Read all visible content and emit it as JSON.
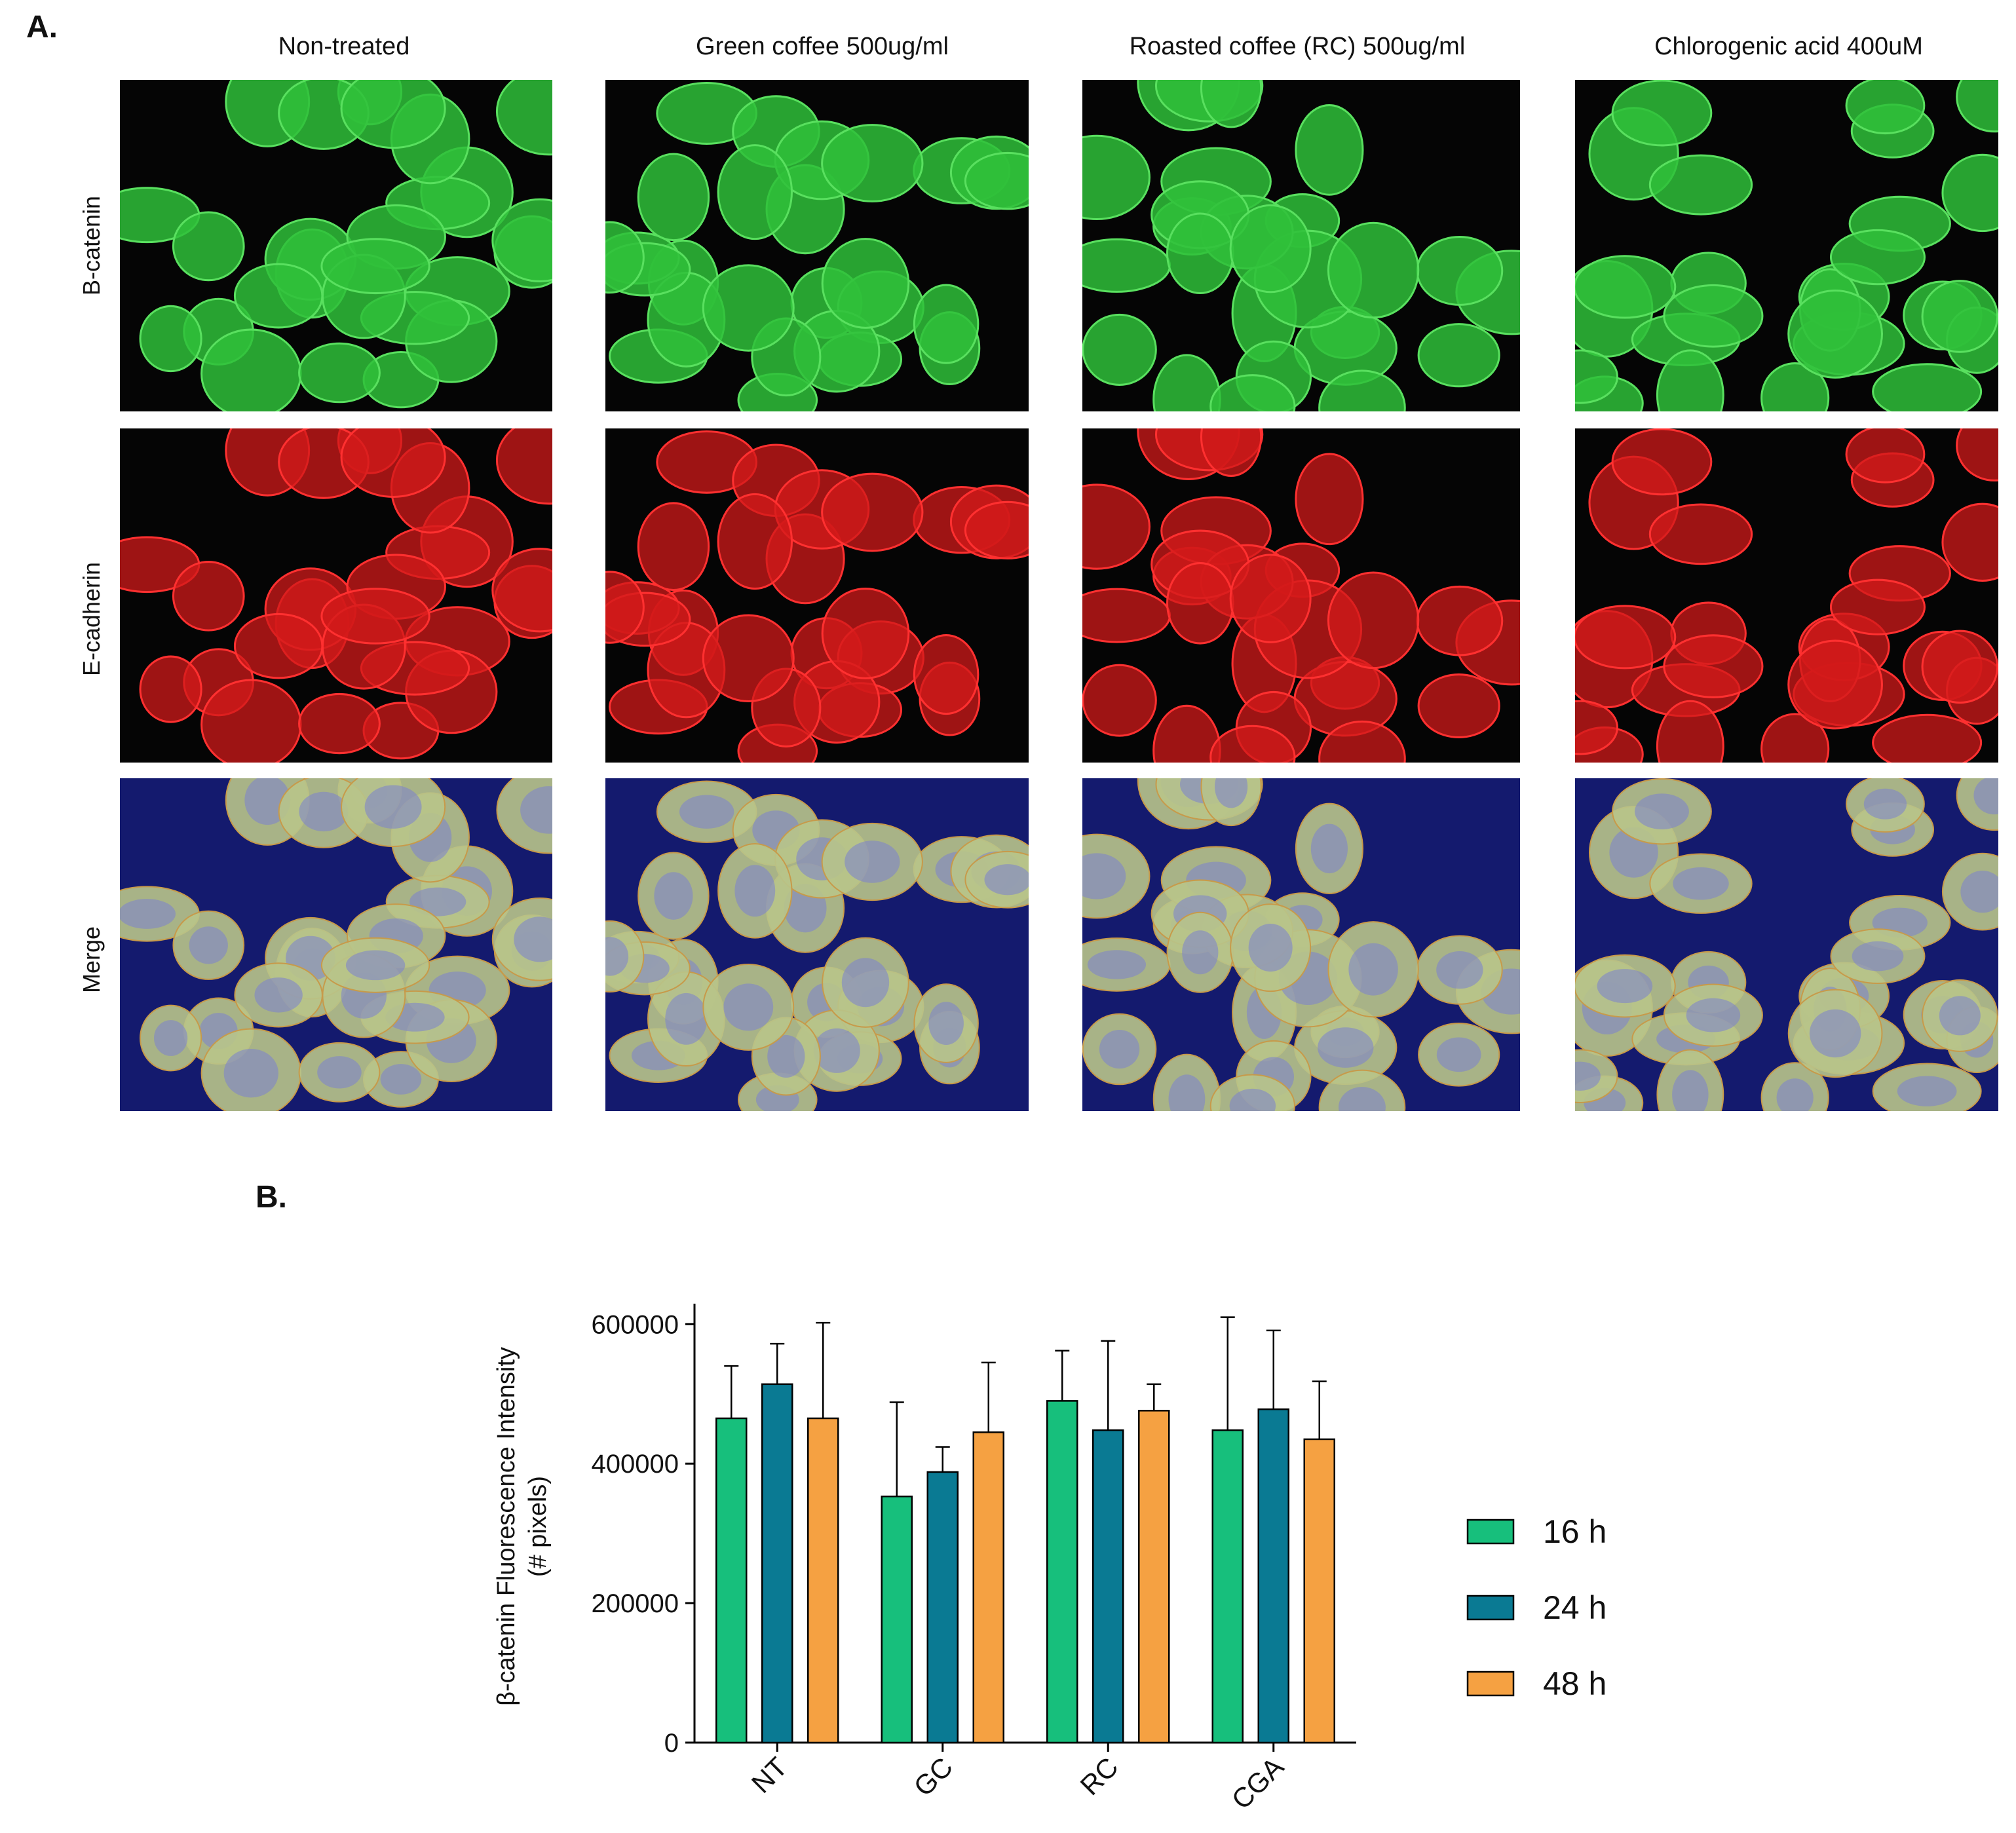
{
  "panel_a": {
    "letter": "A.",
    "columns": [
      "Non-treated",
      "Green coffee 500ug/ml",
      "Roasted coffee (RC) 500ug/ml",
      "Chlorogenic acid 400uM"
    ],
    "rows": [
      "B-catenin",
      "E-cadherin",
      "Merge"
    ],
    "channel_colors": {
      "b_catenin": "#2fbf3a",
      "e_cadherin": "#d11a1a",
      "merge_background": "#141a6e",
      "merge_cells": "#b8c48a",
      "merge_nuclei": "#7a7fd0"
    }
  },
  "panel_b": {
    "letter": "B."
  },
  "chart_data": {
    "type": "bar",
    "categories": [
      "NT",
      "GC",
      "RC",
      "CGA"
    ],
    "ylabel": "β-catenin Fluorescence Intensity\n(# pixels)",
    "ylabel_lines": [
      "β-catenin Fluorescence Intensity",
      "(# pixels)"
    ],
    "ylim": [
      0,
      620000
    ],
    "yticks": [
      0,
      200000,
      400000,
      600000
    ],
    "ytick_labels": [
      "0",
      "200000",
      "400000",
      "600000"
    ],
    "grid": false,
    "legend_position": "right",
    "series": [
      {
        "name": "16 h",
        "color": "#17bf7c",
        "values": [
          465000,
          353000,
          490000,
          448000
        ],
        "error": [
          75000,
          135000,
          72000,
          162000
        ]
      },
      {
        "name": "24 h",
        "color": "#0a7a93",
        "values": [
          514000,
          388000,
          448000,
          478000
        ],
        "error": [
          58000,
          36000,
          128000,
          113000
        ]
      },
      {
        "name": "48 h",
        "color": "#f5a142",
        "values": [
          465000,
          445000,
          476000,
          435000
        ],
        "error": [
          137000,
          100000,
          38000,
          83000
        ]
      }
    ]
  }
}
